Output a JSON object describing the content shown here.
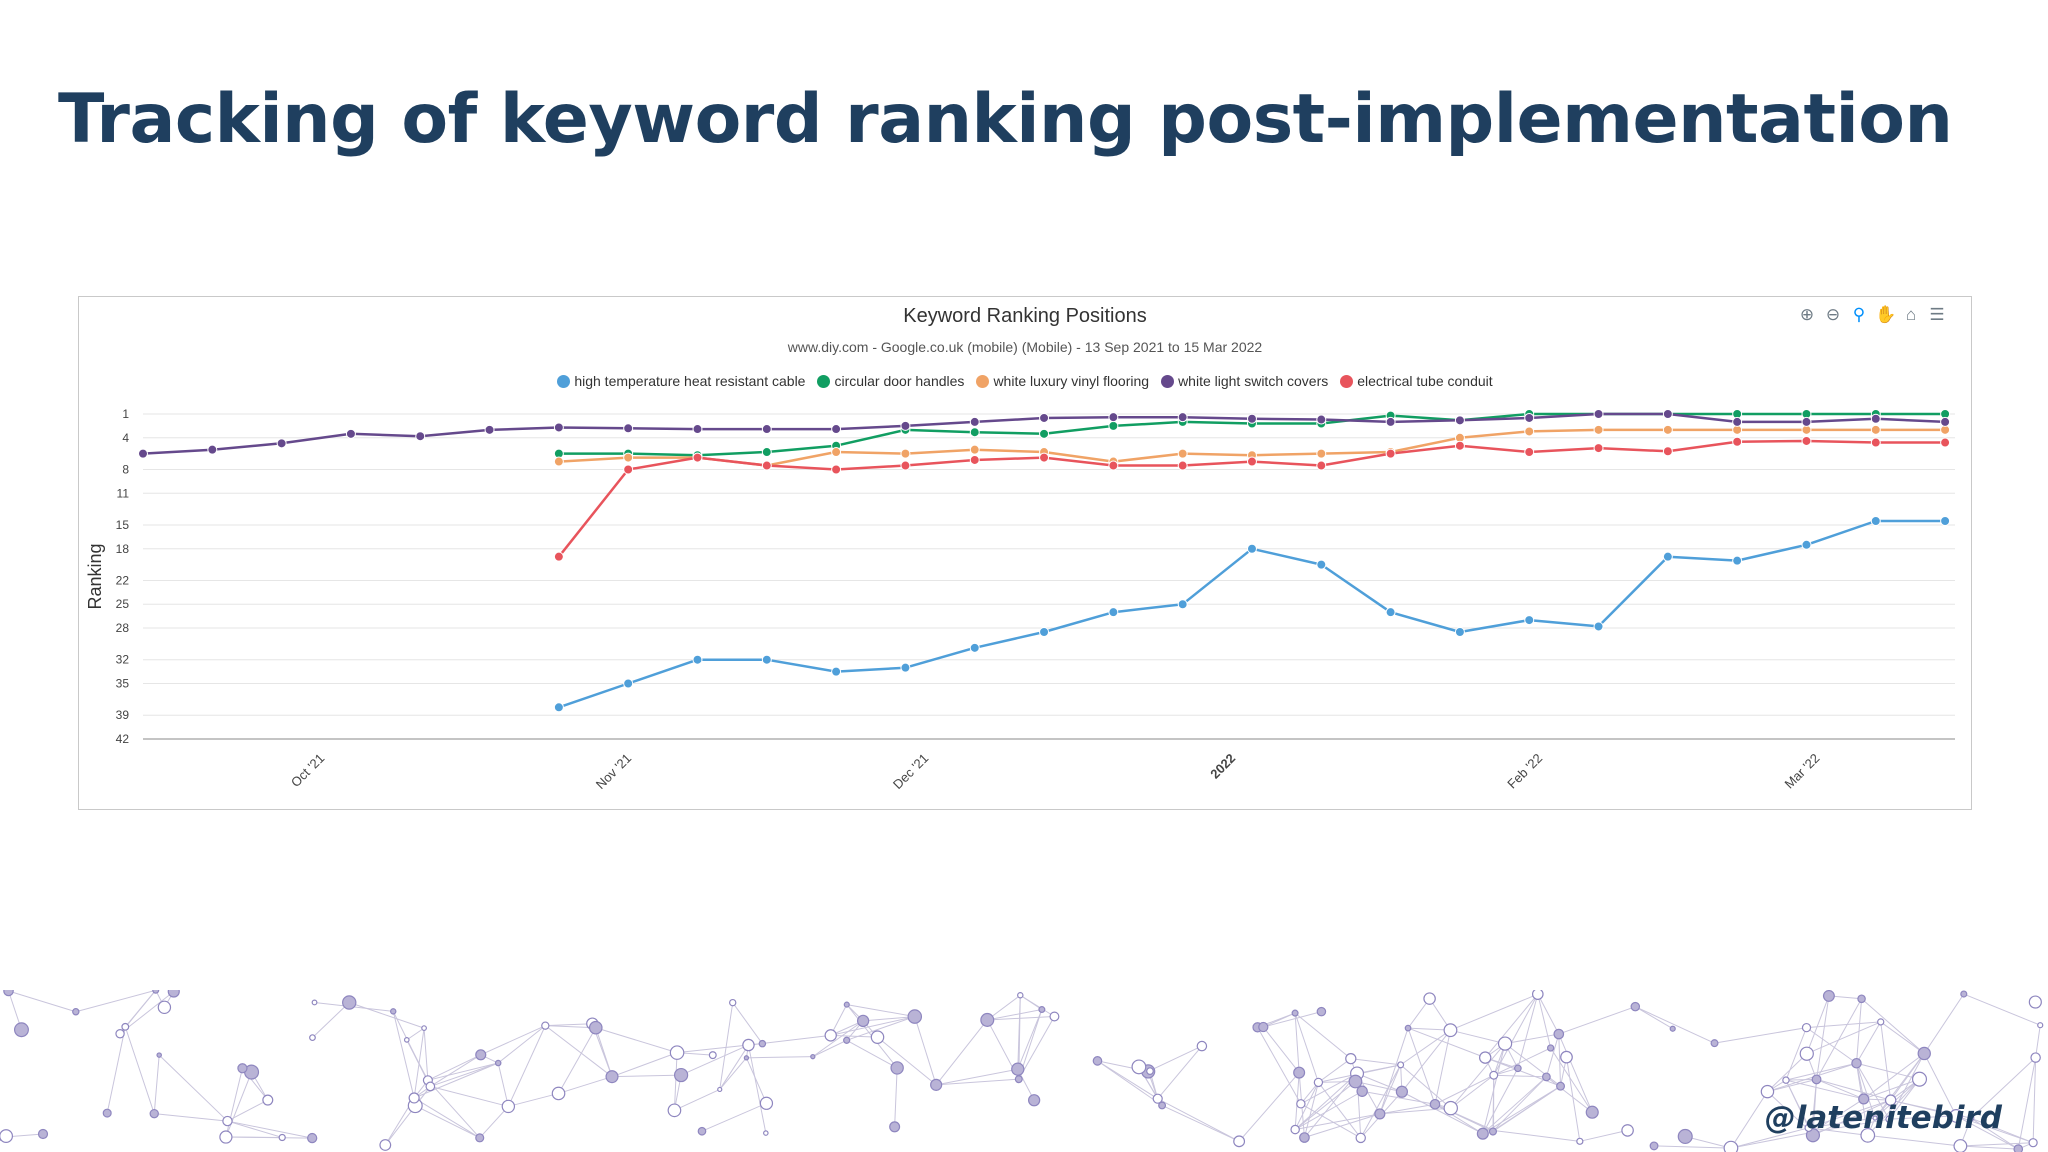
{
  "slide": {
    "title": "Tracking of keyword ranking post-implementation",
    "handle": "@latenitebird"
  },
  "toolbar": {
    "icons": [
      "zoom-in-icon",
      "zoom-out-icon",
      "selection-zoom-icon",
      "pan-hand-icon",
      "home-reset-icon",
      "menu-icon"
    ]
  },
  "chart_data": {
    "type": "line",
    "title": "Keyword Ranking Positions",
    "subtitle": "www.diy.com - Google.co.uk (mobile) (Mobile) - 13 Sep 2021 to 15 Mar 2022",
    "ylabel": "Ranking",
    "y_reversed": true,
    "ylim": [
      1,
      42
    ],
    "y_ticks": [
      1,
      4,
      8,
      11,
      15,
      18,
      22,
      25,
      28,
      32,
      35,
      39,
      42
    ],
    "xlim": [
      "2021-09-13",
      "2022-03-15"
    ],
    "x_ticks": [
      {
        "date": "2021-10-01",
        "label": "Oct '21",
        "bold": false
      },
      {
        "date": "2021-11-01",
        "label": "Nov '21",
        "bold": false
      },
      {
        "date": "2021-12-01",
        "label": "Dec '21",
        "bold": false
      },
      {
        "date": "2022-01-01",
        "label": "2022",
        "bold": true
      },
      {
        "date": "2022-02-01",
        "label": "Feb '22",
        "bold": false
      },
      {
        "date": "2022-03-01",
        "label": "Mar '22",
        "bold": false
      }
    ],
    "grid": true,
    "legend": "top-center",
    "x": [
      "2021-09-13",
      "2021-09-20",
      "2021-09-27",
      "2021-10-04",
      "2021-10-11",
      "2021-10-18",
      "2021-10-25",
      "2021-11-01",
      "2021-11-08",
      "2021-11-15",
      "2021-11-22",
      "2021-11-29",
      "2021-12-06",
      "2021-12-13",
      "2021-12-20",
      "2021-12-27",
      "2022-01-03",
      "2022-01-10",
      "2022-01-17",
      "2022-01-24",
      "2022-01-31",
      "2022-02-07",
      "2022-02-14",
      "2022-02-21",
      "2022-02-28",
      "2022-03-07",
      "2022-03-14"
    ],
    "series": [
      {
        "name": "high temperature heat resistant cable",
        "color": "#4f9fd9",
        "values": [
          null,
          null,
          null,
          null,
          null,
          null,
          38,
          35,
          32,
          32,
          33.5,
          33,
          30.5,
          28.5,
          26,
          25,
          18,
          20,
          26,
          28.5,
          27,
          27.8,
          19,
          19.5,
          17.5,
          14.5,
          14.5
        ]
      },
      {
        "name": "circular door handles",
        "color": "#119e62",
        "values": [
          null,
          null,
          null,
          null,
          null,
          null,
          6,
          6,
          6.2,
          5.8,
          5,
          3,
          3.3,
          3.5,
          2.5,
          2,
          2.2,
          2.2,
          1.2,
          1.8,
          1,
          1,
          1,
          1,
          1,
          1,
          1
        ]
      },
      {
        "name": "white luxury vinyl flooring",
        "color": "#f0a366",
        "values": [
          null,
          null,
          null,
          null,
          null,
          null,
          7,
          6.5,
          6.5,
          7.5,
          5.8,
          6,
          5.5,
          5.8,
          7,
          6,
          6.2,
          6,
          5.8,
          4,
          3.2,
          3,
          3,
          3,
          3,
          3,
          3
        ]
      },
      {
        "name": "white light switch covers",
        "color": "#65498c",
        "values": [
          6,
          5.5,
          4.7,
          3.5,
          3.8,
          3,
          2.7,
          2.8,
          2.9,
          2.9,
          2.9,
          2.5,
          2,
          1.5,
          1.4,
          1.4,
          1.6,
          1.7,
          2,
          1.8,
          1.5,
          1,
          1,
          2,
          2,
          1.6,
          2
        ]
      },
      {
        "name": "electrical tube conduit",
        "color": "#e8545c",
        "values": [
          null,
          null,
          null,
          null,
          null,
          null,
          19,
          8,
          6.5,
          7.5,
          8,
          7.5,
          6.8,
          6.5,
          7.5,
          7.5,
          7,
          7.5,
          6,
          5,
          5.8,
          5.3,
          5.7,
          4.5,
          4.4,
          4.6,
          4.6
        ]
      }
    ]
  }
}
